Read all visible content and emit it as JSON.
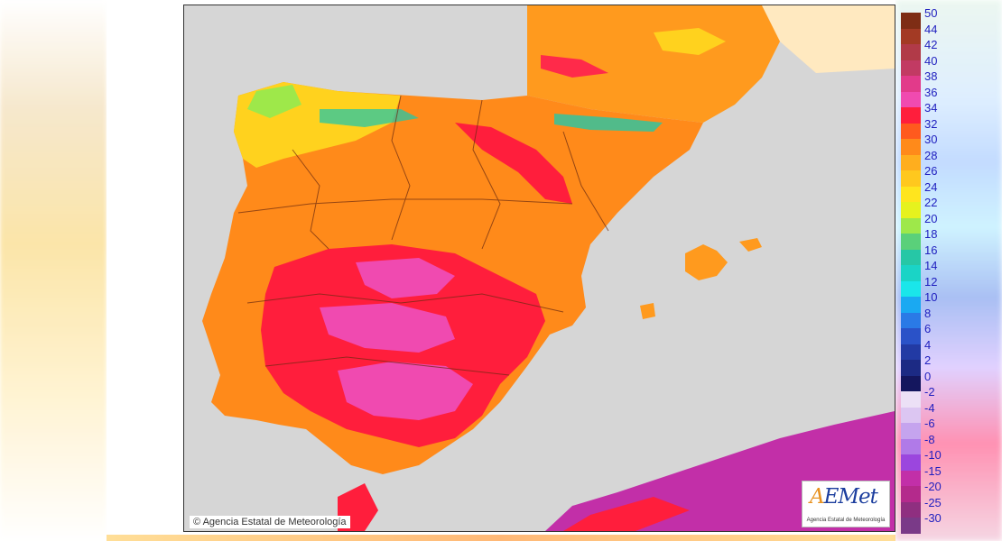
{
  "map": {
    "copyright": "Agencia Estatal de Meteorología",
    "logo_text": "AEMet",
    "logo_subtitle": "Agencia Estatal de Meteorología"
  },
  "legend": {
    "labels": [
      "50",
      "44",
      "42",
      "40",
      "38",
      "36",
      "34",
      "32",
      "30",
      "28",
      "26",
      "24",
      "22",
      "20",
      "18",
      "16",
      "14",
      "12",
      "10",
      "8",
      "6",
      "4",
      "2",
      "0",
      "-2",
      "-4",
      "-6",
      "-8",
      "-10",
      "-15",
      "-20",
      "-25",
      "-30"
    ],
    "colors": [
      "#7e2d15",
      "#a33a24",
      "#b13a48",
      "#c23a63",
      "#e23a8a",
      "#f04ab0",
      "#ff1e3c",
      "#ff5a1e",
      "#ff8a1a",
      "#ffae1e",
      "#ffc81e",
      "#ffe51e",
      "#e6f21e",
      "#9ee84a",
      "#5ad07a",
      "#26c7a6",
      "#1ad4c6",
      "#1ae6ea",
      "#1aa9f2",
      "#2a7ae6",
      "#2a52c8",
      "#223aa4",
      "#1c2a84",
      "#14165e",
      "#ece0f6",
      "#dcc6f2",
      "#c5a4ee",
      "#b07ae8",
      "#9b46de",
      "#c22fa8",
      "#b42a8c",
      "#8f2f80",
      "#7a3a88"
    ]
  },
  "colors": {
    "sea": "#d6d6d6",
    "land_hot": "#ff8a1a",
    "land_very_hot": "#ff1e3c",
    "land_extreme": "#f04ab0",
    "land_mild": "#ffd21e",
    "land_cool": "#8ee05a",
    "borders": "#6b2a10",
    "france_land": "#ff9a1e",
    "foreign_pale": "#ffe9c0"
  }
}
